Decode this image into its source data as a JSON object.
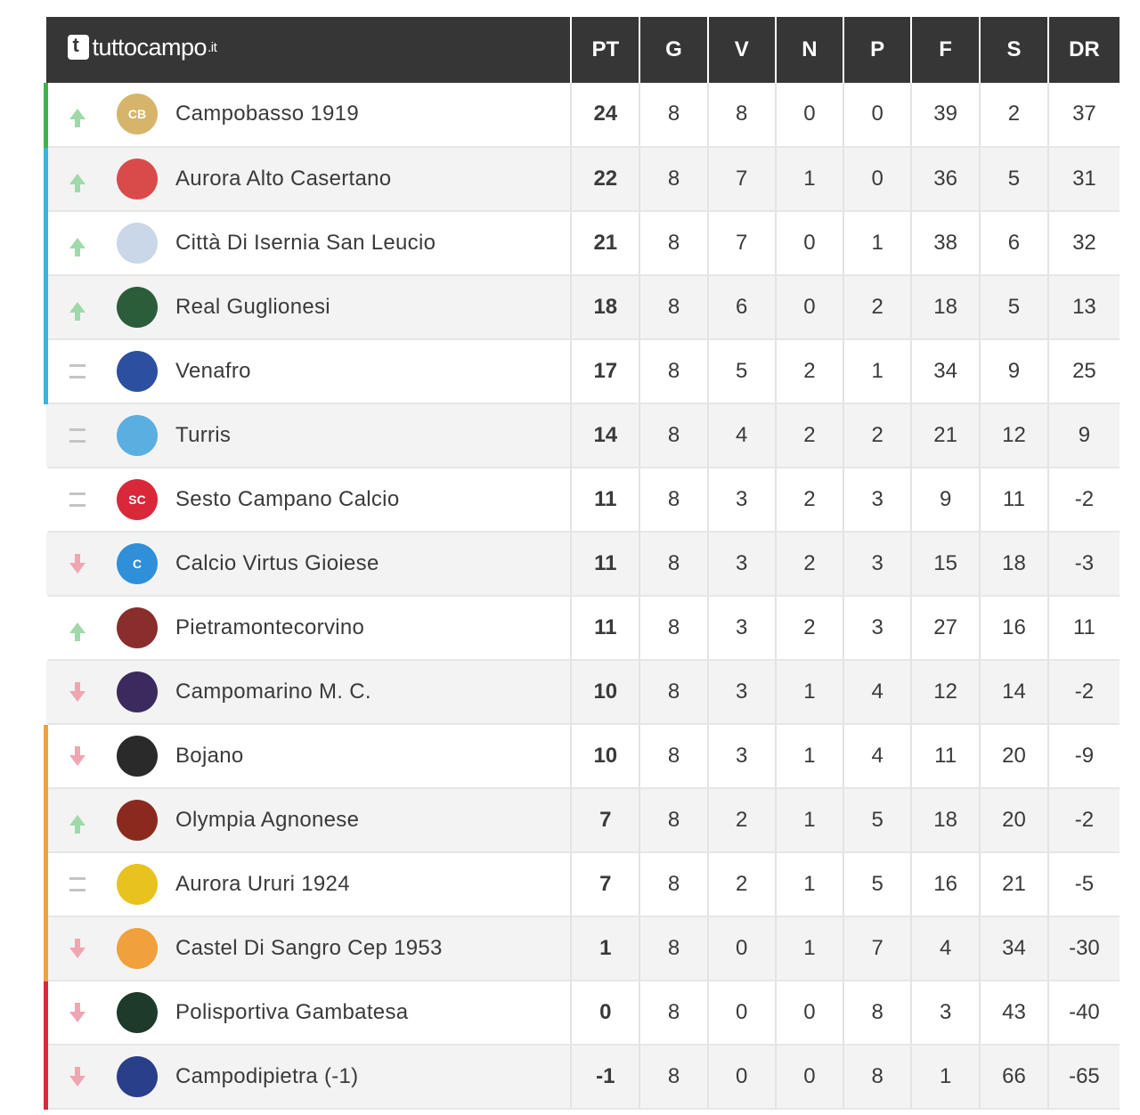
{
  "brand": {
    "name": "tuttocampo",
    "tld": ".it"
  },
  "columns": [
    "PT",
    "G",
    "V",
    "N",
    "P",
    "F",
    "S",
    "DR"
  ],
  "zone_colors": {
    "promotion": "#3cb44b",
    "playoff": "#35b6e0",
    "none": "transparent",
    "playout": "#f0a03c",
    "relegation": "#d8283a"
  },
  "trend_icons": {
    "up": "arrow-up-icon",
    "down": "arrow-down-icon",
    "same": "equal-icon"
  },
  "teams": [
    {
      "name": "Campobasso 1919",
      "trend": "up",
      "zone": "promotion",
      "crest_color": "#d6b56a",
      "crest_text": "CB",
      "stats": [
        "24",
        "8",
        "8",
        "0",
        "0",
        "39",
        "2",
        "37"
      ]
    },
    {
      "name": "Aurora Alto Casertano",
      "trend": "up",
      "zone": "playoff",
      "crest_color": "#d94b4b",
      "crest_text": "",
      "stats": [
        "22",
        "8",
        "7",
        "1",
        "0",
        "36",
        "5",
        "31"
      ]
    },
    {
      "name": "Città Di Isernia San Leucio",
      "trend": "up",
      "zone": "playoff",
      "crest_color": "#c9d7e8",
      "crest_text": "",
      "stats": [
        "21",
        "8",
        "7",
        "0",
        "1",
        "38",
        "6",
        "32"
      ]
    },
    {
      "name": "Real Guglionesi",
      "trend": "up",
      "zone": "playoff",
      "crest_color": "#2b5d3a",
      "crest_text": "",
      "stats": [
        "18",
        "8",
        "6",
        "0",
        "2",
        "18",
        "5",
        "13"
      ]
    },
    {
      "name": "Venafro",
      "trend": "same",
      "zone": "playoff",
      "crest_color": "#2d4fa0",
      "crest_text": "",
      "stats": [
        "17",
        "8",
        "5",
        "2",
        "1",
        "34",
        "9",
        "25"
      ]
    },
    {
      "name": "Turris",
      "trend": "same",
      "zone": "none",
      "crest_color": "#5aaee0",
      "crest_text": "",
      "stats": [
        "14",
        "8",
        "4",
        "2",
        "2",
        "21",
        "12",
        "9"
      ]
    },
    {
      "name": "Sesto Campano Calcio",
      "trend": "same",
      "zone": "none",
      "crest_color": "#d8283a",
      "crest_text": "SC",
      "stats": [
        "11",
        "8",
        "3",
        "2",
        "3",
        "9",
        "11",
        "-2"
      ]
    },
    {
      "name": "Calcio Virtus Gioiese",
      "trend": "down",
      "zone": "none",
      "crest_color": "#2f8fd8",
      "crest_text": "C",
      "stats": [
        "11",
        "8",
        "3",
        "2",
        "3",
        "15",
        "18",
        "-3"
      ]
    },
    {
      "name": "Pietramontecorvino",
      "trend": "up",
      "zone": "none",
      "crest_color": "#8a2d2d",
      "crest_text": "",
      "stats": [
        "11",
        "8",
        "3",
        "2",
        "3",
        "27",
        "16",
        "11"
      ]
    },
    {
      "name": "Campomarino M. C.",
      "trend": "down",
      "zone": "none",
      "crest_color": "#3b2a5e",
      "crest_text": "",
      "stats": [
        "10",
        "8",
        "3",
        "1",
        "4",
        "12",
        "14",
        "-2"
      ]
    },
    {
      "name": "Bojano",
      "trend": "down",
      "zone": "playout",
      "crest_color": "#2a2a2a",
      "crest_text": "",
      "stats": [
        "10",
        "8",
        "3",
        "1",
        "4",
        "11",
        "20",
        "-9"
      ]
    },
    {
      "name": "Olympia Agnonese",
      "trend": "up",
      "zone": "playout",
      "crest_color": "#8a2a1e",
      "crest_text": "",
      "stats": [
        "7",
        "8",
        "2",
        "1",
        "5",
        "18",
        "20",
        "-2"
      ]
    },
    {
      "name": "Aurora Ururi 1924",
      "trend": "same",
      "zone": "playout",
      "crest_color": "#e8c21e",
      "crest_text": "",
      "stats": [
        "7",
        "8",
        "2",
        "1",
        "5",
        "16",
        "21",
        "-5"
      ]
    },
    {
      "name": "Castel Di Sangro Cep 1953",
      "trend": "down",
      "zone": "playout",
      "crest_color": "#f0a03c",
      "crest_text": "",
      "stats": [
        "1",
        "8",
        "0",
        "1",
        "7",
        "4",
        "34",
        "-30"
      ]
    },
    {
      "name": "Polisportiva Gambatesa",
      "trend": "down",
      "zone": "relegation",
      "crest_color": "#1e3a2a",
      "crest_text": "",
      "stats": [
        "0",
        "8",
        "0",
        "0",
        "8",
        "3",
        "43",
        "-40"
      ]
    },
    {
      "name": "Campodipietra (-1)",
      "trend": "down",
      "zone": "relegation",
      "crest_color": "#2a3f8a",
      "crest_text": "",
      "stats": [
        "-1",
        "8",
        "0",
        "0",
        "8",
        "1",
        "66",
        "-65"
      ]
    }
  ]
}
